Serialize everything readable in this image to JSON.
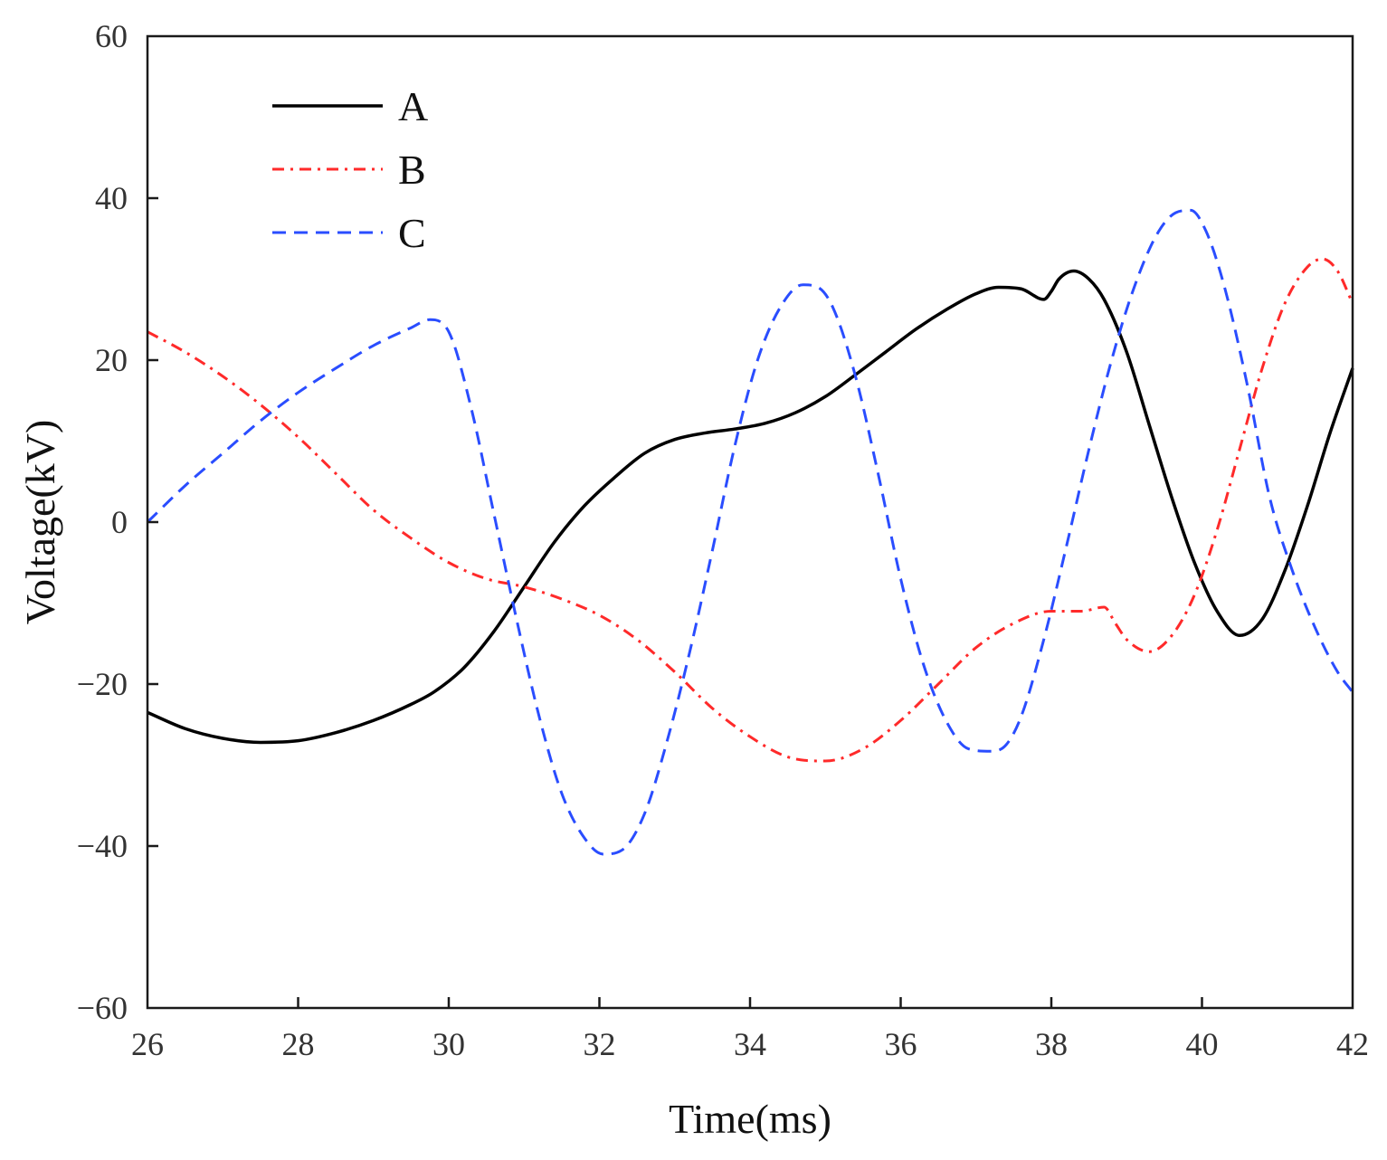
{
  "chart_data": {
    "type": "line",
    "title": "",
    "xlabel": "Time(ms)",
    "ylabel": "Voltage(kV)",
    "xlim": [
      26,
      42
    ],
    "ylim": [
      -60,
      60
    ],
    "xticks": [
      26,
      28,
      30,
      32,
      34,
      36,
      38,
      40,
      42
    ],
    "yticks": [
      -60,
      -40,
      -20,
      0,
      20,
      40,
      60
    ],
    "xtick_labels": [
      "26",
      "28",
      "30",
      "32",
      "34",
      "36",
      "38",
      "40",
      "42"
    ],
    "ytick_labels": [
      "−60",
      "−40",
      "−20",
      "0",
      "20",
      "40",
      "60"
    ],
    "grid": false,
    "legend_position": "top-left",
    "series": [
      {
        "name": "A",
        "color": "#000000",
        "dash": "solid",
        "x": [
          26,
          26.5,
          27,
          27.5,
          28,
          28.5,
          29,
          29.5,
          29.8,
          30.2,
          30.6,
          31,
          31.4,
          31.8,
          32.2,
          32.6,
          33,
          33.4,
          33.8,
          34.2,
          34.6,
          35,
          35.4,
          35.8,
          36.2,
          36.6,
          37,
          37.3,
          37.6,
          37.9,
          38,
          38.1,
          38.3,
          38.5,
          38.7,
          39,
          39.3,
          39.6,
          39.9,
          40.2,
          40.5,
          40.8,
          41.1,
          41.4,
          41.7,
          42
        ],
        "y": [
          -23.5,
          -25.5,
          -26.7,
          -27.2,
          -27,
          -26,
          -24.5,
          -22.5,
          -21,
          -18,
          -13.5,
          -8,
          -2.5,
          2,
          5.5,
          8.5,
          10.2,
          11,
          11.5,
          12.2,
          13.5,
          15.5,
          18.2,
          21,
          23.8,
          26.2,
          28.2,
          29,
          28.8,
          27.5,
          28.5,
          30,
          31,
          30,
          27.5,
          21,
          12,
          3,
          -5,
          -11,
          -14,
          -12,
          -6,
          2,
          11,
          19
        ]
      },
      {
        "name": "B",
        "color": "#ff2a2a",
        "dash": "dash-dot",
        "x": [
          26,
          26.5,
          27,
          27.5,
          28,
          28.5,
          29,
          29.5,
          30,
          30.5,
          31,
          31.5,
          32,
          32.5,
          33,
          33.5,
          34,
          34.5,
          35,
          35.5,
          36,
          36.5,
          37,
          37.5,
          38,
          38.4,
          38.7,
          38.85,
          39,
          39.3,
          39.6,
          39.9,
          40.2,
          40.5,
          40.8,
          41.1,
          41.4,
          41.6,
          41.8,
          42
        ],
        "y": [
          23.5,
          21,
          18,
          14.5,
          10.5,
          6,
          1.5,
          -2,
          -5,
          -7,
          -8,
          -9.5,
          -11.5,
          -14.5,
          -18.5,
          -23,
          -26.5,
          -29,
          -29.5,
          -28,
          -24.5,
          -20,
          -15.5,
          -12.5,
          -11,
          -11,
          -10.5,
          -12.5,
          -14.5,
          -16,
          -14,
          -9,
          -1,
          9,
          19,
          27,
          31.5,
          32.5,
          31,
          27
        ]
      },
      {
        "name": "C",
        "color": "#2a4dff",
        "dash": "dashed",
        "x": [
          26,
          26.5,
          27,
          27.5,
          28,
          28.5,
          29,
          29.5,
          29.75,
          30,
          30.3,
          30.6,
          30.9,
          31.2,
          31.5,
          31.8,
          32.05,
          32.3,
          32.6,
          32.9,
          33.2,
          33.5,
          33.8,
          34.1,
          34.4,
          34.7,
          34.9,
          35.1,
          35.4,
          35.7,
          36,
          36.3,
          36.6,
          36.9,
          37.2,
          37.4,
          37.6,
          37.9,
          38.2,
          38.5,
          38.8,
          39.1,
          39.4,
          39.65,
          39.85,
          40.05,
          40.3,
          40.6,
          40.9,
          41.2,
          41.5,
          41.8,
          42
        ],
        "y": [
          0,
          4.5,
          8.5,
          12.5,
          16,
          19,
          21.8,
          24,
          25,
          23.5,
          14,
          1,
          -12,
          -24,
          -33.5,
          -39,
          -41,
          -40.5,
          -36,
          -27,
          -16,
          -3.5,
          9.5,
          20,
          26.5,
          29.3,
          29,
          26.5,
          18,
          6,
          -7,
          -17.5,
          -24.5,
          -28,
          -28.3,
          -27.5,
          -24,
          -14.5,
          -3,
          9,
          20,
          29,
          35.5,
          38.2,
          38.5,
          36,
          29,
          17,
          3,
          -6,
          -13,
          -18.5,
          -21
        ]
      }
    ]
  }
}
